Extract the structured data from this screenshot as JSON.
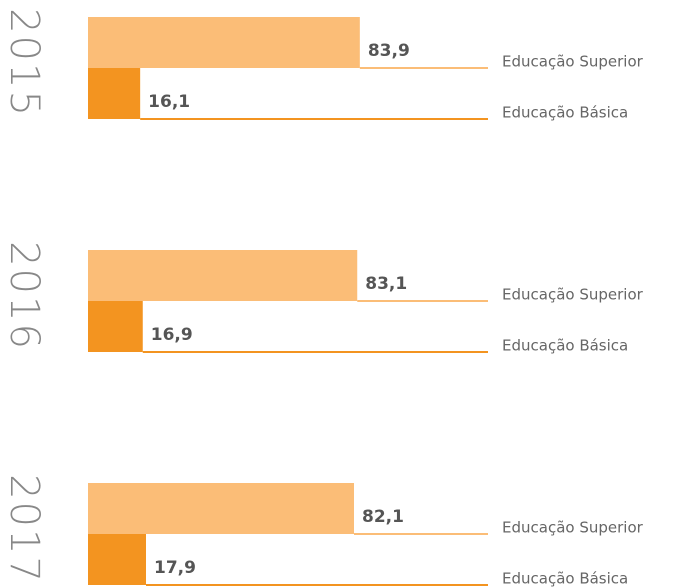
{
  "chart_data": {
    "type": "bar",
    "categories": [
      "2015",
      "2016",
      "2017"
    ],
    "series": [
      {
        "name": "Educação Superior",
        "color": "#fbbd77",
        "values": [
          83.9,
          83.1,
          82.1
        ],
        "value_labels": [
          "83,9",
          "83,1",
          "82,1"
        ]
      },
      {
        "name": "Educação Básica",
        "color": "#f39420",
        "values": [
          16.1,
          16.9,
          17.9
        ],
        "value_labels": [
          "16,1",
          "16,9",
          "17,9"
        ]
      }
    ]
  }
}
